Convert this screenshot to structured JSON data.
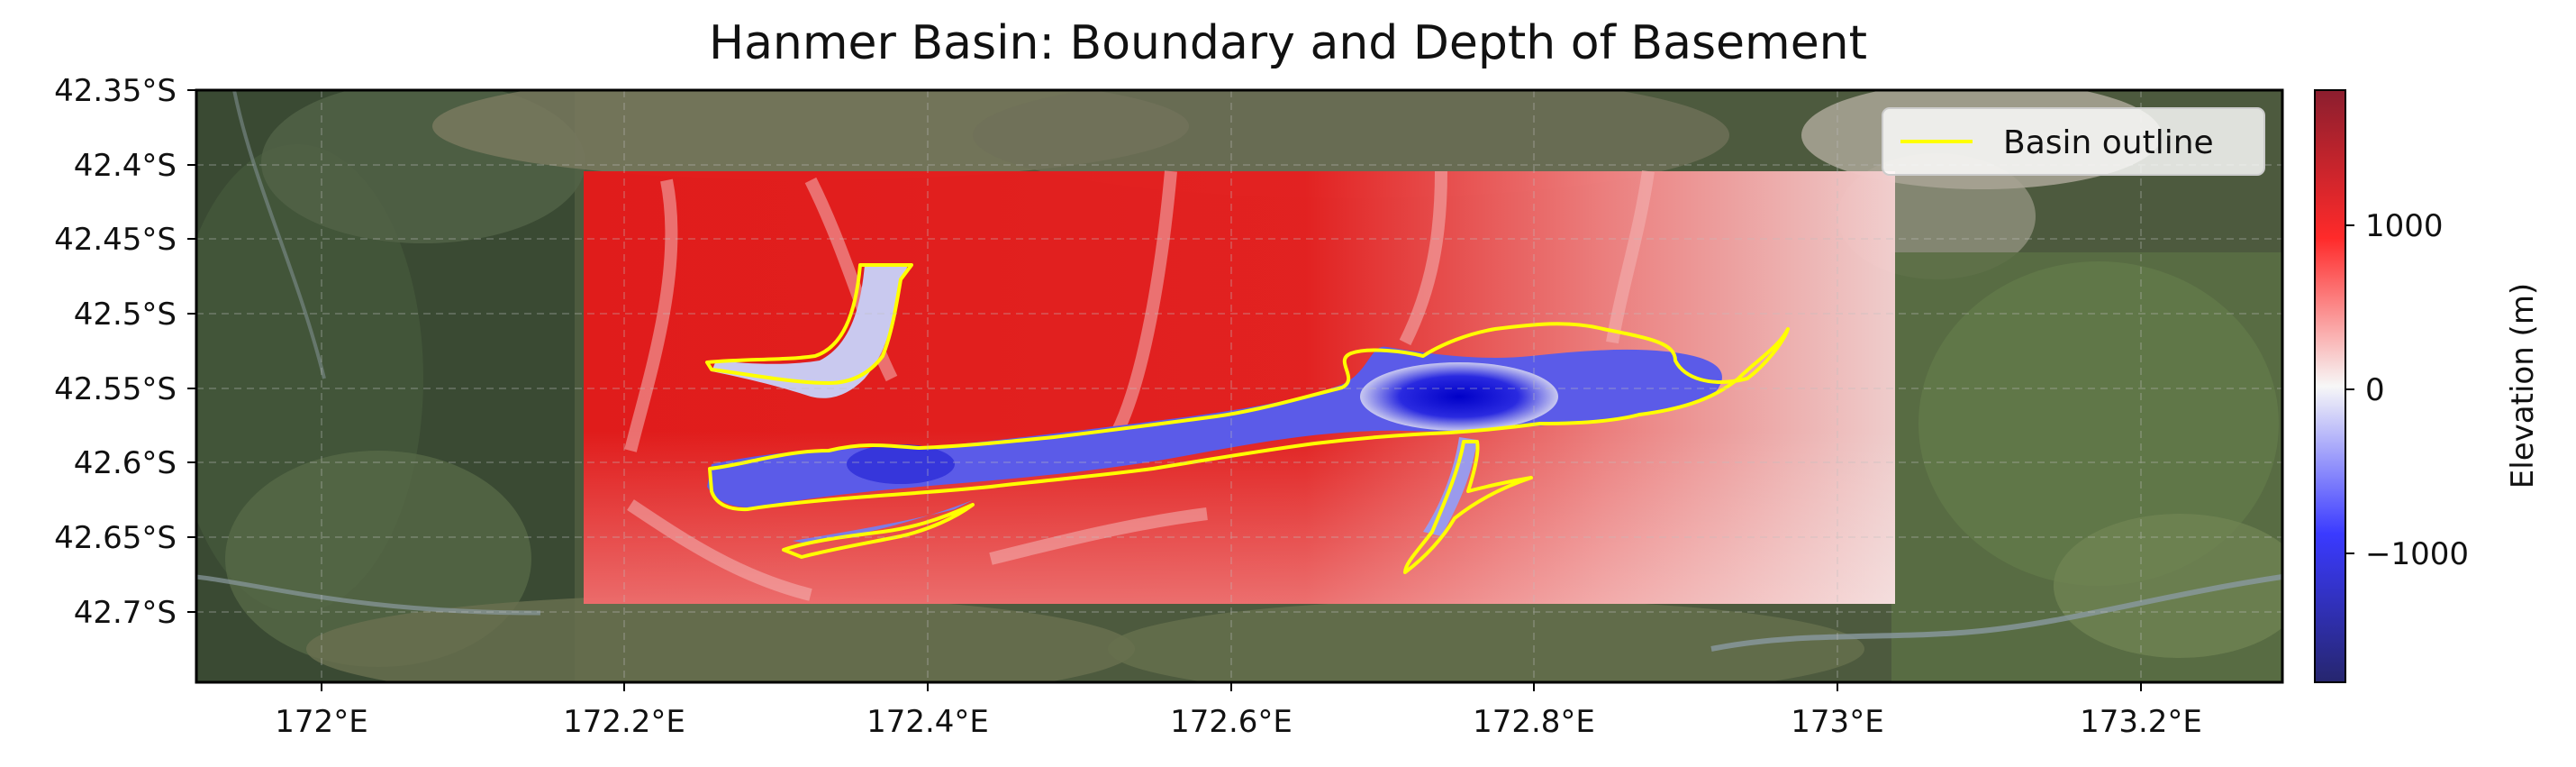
{
  "title": "Hanmer Basin: Boundary and Depth of Basement",
  "x_ticks": [
    "172°E",
    "172.2°E",
    "172.4°E",
    "172.6°E",
    "172.8°E",
    "173°E",
    "173.2°E"
  ],
  "y_ticks": [
    "42.35°S",
    "42.4°S",
    "42.45°S",
    "42.5°S",
    "42.55°S",
    "42.6°S",
    "42.65°S",
    "42.7°S"
  ],
  "legend": {
    "label": "Basin outline",
    "color": "#ffff00"
  },
  "colorbar": {
    "label": "Elevation (m)",
    "ticks": [
      "1000",
      "0",
      "−1000"
    ],
    "colors": {
      "max": "#8b1e2e",
      "high": "#ff2a2a",
      "zero": "#f7f7f7",
      "low": "#3a3aff",
      "min": "#26266e"
    }
  },
  "map": {
    "basemap": "satellite imagery",
    "overlay": "basement depth raster",
    "grid": true
  }
}
